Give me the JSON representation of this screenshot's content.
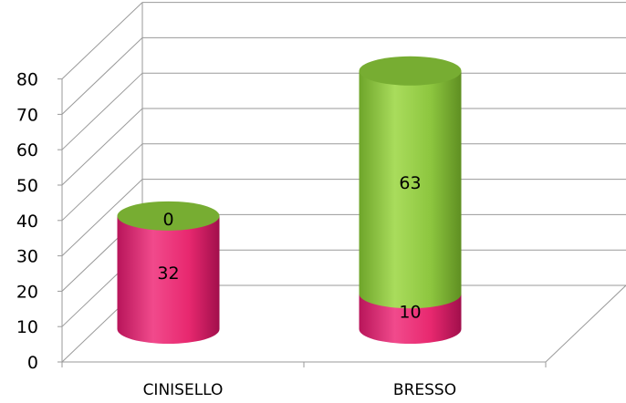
{
  "chart_data": {
    "type": "bar",
    "stacked": true,
    "style": "3d-cylinder",
    "categories": [
      "CINISELLO",
      "BRESSO"
    ],
    "series": [
      {
        "values": [
          32,
          10
        ],
        "data_labels": [
          "32",
          "10"
        ],
        "color": "#e8286f"
      },
      {
        "values": [
          0,
          63
        ],
        "data_labels": [
          "0",
          "63"
        ],
        "color": "#8dc63f"
      }
    ],
    "yaxis": {
      "min": 0,
      "max": 80,
      "step": 10,
      "tick_labels": [
        "0",
        "10",
        "20",
        "30",
        "40",
        "50",
        "60",
        "70",
        "80"
      ]
    },
    "grid": true,
    "legend": "none",
    "title": "",
    "xlabel": "",
    "ylabel": ""
  }
}
